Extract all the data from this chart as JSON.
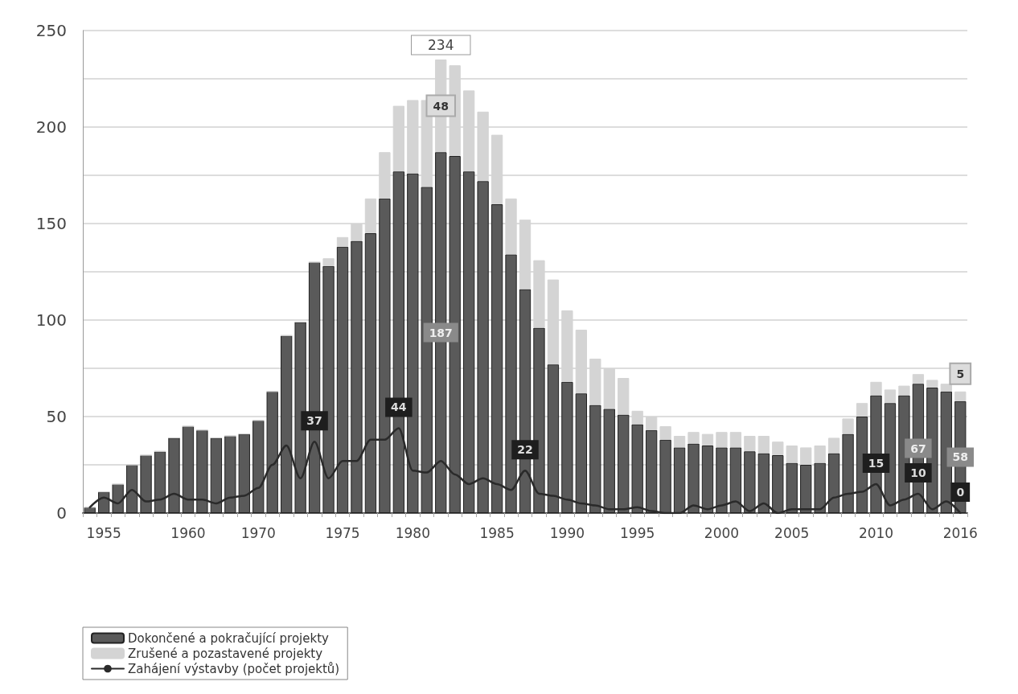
{
  "chart_data": {
    "type": "bar",
    "stacked": true,
    "categories": [
      null,
      "1955",
      null,
      null,
      null,
      null,
      null,
      "1960",
      null,
      null,
      null,
      null,
      "1970",
      null,
      null,
      null,
      null,
      null,
      "1975",
      null,
      null,
      null,
      null,
      "1980",
      null,
      null,
      null,
      null,
      null,
      "1985",
      null,
      null,
      null,
      null,
      "1990",
      null,
      null,
      null,
      null,
      "1995",
      null,
      null,
      null,
      null,
      null,
      "2000",
      null,
      null,
      null,
      null,
      "2005",
      null,
      null,
      null,
      null,
      null,
      "2010",
      null,
      null,
      null,
      null,
      null,
      "2016"
    ],
    "series": [
      {
        "name": "Dokončené a pokračující projekty",
        "color": "#5a5a5a",
        "values": [
          3,
          11,
          15,
          25,
          30,
          32,
          39,
          45,
          43,
          39,
          40,
          41,
          48,
          63,
          92,
          99,
          130,
          128,
          138,
          141,
          145,
          163,
          177,
          176,
          169,
          187,
          185,
          177,
          172,
          160,
          134,
          116,
          96,
          77,
          68,
          62,
          56,
          54,
          51,
          46,
          43,
          38,
          34,
          36,
          35,
          34,
          34,
          32,
          31,
          30,
          26,
          25,
          26,
          31,
          41,
          50,
          61,
          57,
          61,
          67,
          65,
          63,
          58
        ],
        "value_labels": [
          null,
          null,
          null,
          null,
          null,
          null,
          null,
          null,
          null,
          null,
          null,
          null,
          null,
          null,
          null,
          null,
          null,
          null,
          null,
          null,
          null,
          null,
          null,
          null,
          null,
          "187",
          null,
          null,
          null,
          null,
          null,
          null,
          null,
          null,
          null,
          null,
          null,
          null,
          null,
          null,
          null,
          null,
          null,
          null,
          null,
          null,
          null,
          null,
          null,
          null,
          null,
          null,
          null,
          null,
          null,
          null,
          null,
          null,
          null,
          "67",
          null,
          null,
          "58"
        ]
      },
      {
        "name": "Zrušené a pozastavené projekty",
        "color": "#d4d4d4",
        "values": [
          0,
          0,
          0,
          0,
          0,
          0,
          0,
          0,
          0,
          0,
          0,
          0,
          0,
          0,
          0,
          0,
          0,
          4,
          5,
          9,
          18,
          24,
          34,
          38,
          45,
          48,
          47,
          42,
          36,
          36,
          29,
          36,
          35,
          44,
          37,
          33,
          24,
          21,
          19,
          7,
          7,
          7,
          6,
          6,
          6,
          8,
          8,
          8,
          9,
          7,
          9,
          9,
          9,
          8,
          8,
          7,
          7,
          7,
          5,
          5,
          4,
          4,
          5
        ],
        "value_labels": [
          null,
          null,
          null,
          null,
          null,
          null,
          null,
          null,
          null,
          null,
          null,
          null,
          null,
          null,
          null,
          null,
          null,
          null,
          null,
          null,
          null,
          null,
          null,
          null,
          null,
          "48",
          null,
          null,
          null,
          null,
          null,
          null,
          null,
          null,
          null,
          null,
          null,
          null,
          null,
          null,
          null,
          null,
          null,
          null,
          null,
          null,
          null,
          null,
          null,
          null,
          null,
          null,
          null,
          null,
          null,
          null,
          null,
          null,
          null,
          null,
          null,
          null,
          "5"
        ]
      },
      {
        "name": "Zahájení výstavby (počet projektů)",
        "type": "line",
        "color": "#2a2a2a",
        "values": [
          3,
          8,
          5,
          12,
          6,
          7,
          10,
          7,
          7,
          5,
          8,
          9,
          13,
          25,
          35,
          18,
          37,
          18,
          27,
          27,
          38,
          38,
          44,
          22,
          21,
          27,
          20,
          15,
          18,
          15,
          12,
          22,
          10,
          9,
          7,
          5,
          4,
          2,
          2,
          3,
          1,
          0,
          0,
          4,
          2,
          4,
          6,
          1,
          5,
          0,
          2,
          2,
          2,
          8,
          10,
          11,
          15,
          4,
          7,
          10,
          2,
          6,
          0
        ],
        "value_labels": [
          null,
          null,
          null,
          null,
          null,
          null,
          null,
          null,
          null,
          null,
          null,
          null,
          null,
          null,
          null,
          null,
          "37",
          null,
          null,
          null,
          null,
          null,
          "44",
          null,
          null,
          null,
          null,
          null,
          null,
          null,
          null,
          "22",
          null,
          null,
          null,
          null,
          null,
          null,
          null,
          null,
          null,
          null,
          null,
          null,
          null,
          null,
          null,
          null,
          null,
          null,
          null,
          null,
          null,
          null,
          null,
          null,
          "15",
          null,
          null,
          "10",
          null,
          null,
          "0"
        ]
      }
    ],
    "totals": [
      null,
      null,
      null,
      null,
      null,
      null,
      null,
      null,
      null,
      null,
      null,
      null,
      null,
      null,
      null,
      null,
      null,
      null,
      null,
      null,
      null,
      null,
      null,
      null,
      null,
      "234",
      null,
      null,
      null,
      null,
      null,
      null,
      null,
      null,
      null,
      null,
      null,
      null,
      null,
      null,
      null,
      null,
      null,
      null,
      null,
      null,
      null,
      null,
      null,
      null,
      null,
      null,
      null,
      null,
      null,
      null,
      null,
      null,
      null,
      null,
      null,
      null,
      null
    ],
    "ylim": [
      0,
      250
    ],
    "yticks": [
      0,
      {
        "value": 25,
        "label": null
      },
      50,
      {
        "value": 75,
        "label": null
      },
      100,
      {
        "value": 125,
        "label": null
      },
      150,
      {
        "value": 175,
        "label": null
      },
      200,
      {
        "value": 225,
        "label": null
      },
      250
    ],
    "grid": "y",
    "legend": "bottom left"
  }
}
